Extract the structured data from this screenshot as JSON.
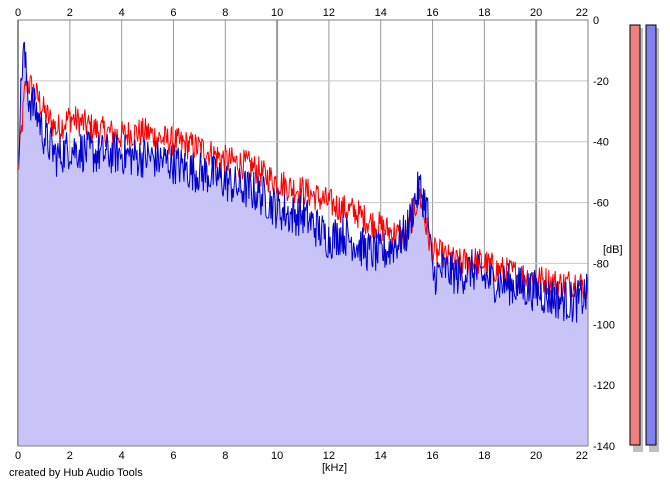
{
  "chart_data": {
    "type": "line",
    "xlabel": "[kHz]",
    "ylabel": "[dB]",
    "xlim": [
      0,
      22
    ],
    "ylim": [
      -140,
      0
    ],
    "x_ticks": [
      "0",
      "2",
      "4",
      "6",
      "8",
      "10",
      "12",
      "14",
      "16",
      "18",
      "20",
      "22"
    ],
    "y_ticks": [
      "0",
      "-20",
      "-40",
      "-60",
      "-80",
      "-100",
      "-120",
      "-140"
    ],
    "grid": true,
    "series": [
      {
        "color": "#ff0000",
        "x": [
          0,
          0.3,
          0.5,
          0.8,
          1,
          1.5,
          2,
          2.5,
          3,
          3.5,
          4,
          4.5,
          5,
          5.5,
          6,
          6.5,
          7,
          7.5,
          8,
          8.5,
          9,
          9.5,
          10,
          10.5,
          11,
          11.5,
          12,
          12.5,
          13,
          13.5,
          14,
          14.5,
          15,
          15.3,
          15.5,
          15.8,
          16,
          16.5,
          17,
          17.5,
          18,
          18.5,
          19,
          19.5,
          20,
          20.5,
          21,
          21.5,
          22
        ],
        "values": [
          -50,
          -20,
          -22,
          -26,
          -30,
          -36,
          -32,
          -34,
          -36,
          -37,
          -38,
          -37,
          -37,
          -39,
          -40,
          -41,
          -42,
          -44,
          -46,
          -47,
          -48,
          -51,
          -53,
          -55,
          -56,
          -58,
          -60,
          -62,
          -63,
          -66,
          -68,
          -70,
          -72,
          -62,
          -57,
          -70,
          -76,
          -78,
          -80,
          -79,
          -80,
          -82,
          -83,
          -84,
          -85,
          -86,
          -87,
          -86,
          -88
        ]
      },
      {
        "color": "#0000cc",
        "x": [
          0,
          0.2,
          0.4,
          0.8,
          1,
          1.5,
          2,
          2.5,
          3,
          3.5,
          4,
          4.5,
          5,
          5.5,
          6,
          6.5,
          7,
          7.5,
          8,
          8.5,
          9,
          9.5,
          10,
          10.5,
          11,
          11.5,
          12,
          12.5,
          13,
          13.5,
          14,
          14.5,
          15,
          15.3,
          15.5,
          15.8,
          16,
          16.5,
          17,
          17.5,
          18,
          18.5,
          19,
          19.5,
          20,
          20.5,
          21,
          21.5,
          22
        ],
        "values": [
          -45,
          -8,
          -25,
          -32,
          -38,
          -45,
          -42,
          -43,
          -44,
          -44,
          -44,
          -45,
          -45,
          -46,
          -47,
          -49,
          -50,
          -51,
          -53,
          -55,
          -56,
          -58,
          -62,
          -64,
          -64,
          -68,
          -72,
          -70,
          -73,
          -76,
          -77,
          -74,
          -70,
          -60,
          -55,
          -62,
          -84,
          -82,
          -84,
          -82,
          -85,
          -86,
          -87,
          -88,
          -89,
          -91,
          -92,
          -93,
          -90
        ]
      }
    ],
    "fill_color": "#c8c4f8",
    "meters": [
      {
        "color": "#f08080"
      },
      {
        "color": "#8080f0"
      }
    ]
  },
  "footer": {
    "credit": "created by Hub Audio Tools"
  }
}
